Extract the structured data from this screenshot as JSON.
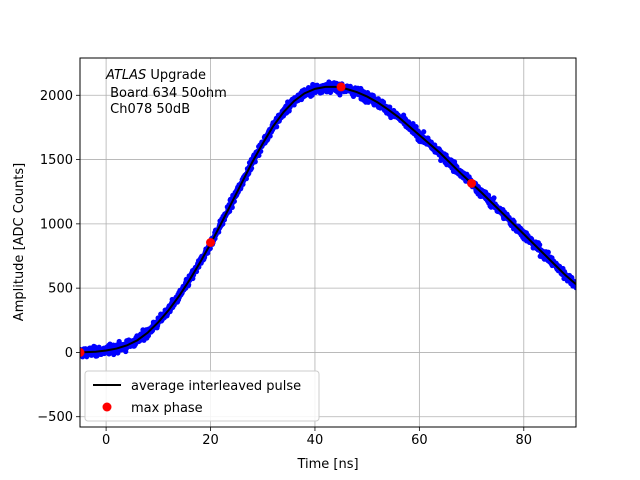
{
  "chart_data": {
    "type": "scatter",
    "xlabel": "Time [ns]",
    "ylabel": "Amplitude [ADC Counts]",
    "xlim": [
      -5,
      90
    ],
    "ylim": [
      -580,
      2290
    ],
    "xticks": [
      0,
      20,
      40,
      60,
      80
    ],
    "yticks": [
      -500,
      0,
      500,
      1000,
      1500,
      2000
    ],
    "grid": true,
    "annotation": {
      "line1_italic": "ATLAS",
      "line1_rest": " Upgrade",
      "line2": " Board 634 50ohm",
      "line3": " Ch078 50dB"
    },
    "legend": {
      "position": "lower-left",
      "entries": [
        {
          "label": "average interleaved pulse",
          "color": "#000000",
          "marker": "line"
        },
        {
          "label": "max phase",
          "color": "#ff0000",
          "marker": "circle"
        }
      ]
    },
    "series": [
      {
        "name": "average interleaved pulse",
        "color": "#000000",
        "x": [
          -5,
          -2,
          0,
          2,
          4,
          6,
          8,
          10,
          12,
          14,
          16,
          18,
          20,
          22,
          24,
          26,
          28,
          30,
          32,
          34,
          36,
          38,
          40,
          42,
          44,
          46,
          48,
          50,
          52,
          54,
          56,
          58,
          60,
          62,
          64,
          66,
          68,
          70,
          72,
          74,
          76,
          78,
          80,
          82,
          84,
          86,
          88,
          90
        ],
        "y": [
          0,
          5,
          15,
          30,
          55,
          95,
          155,
          235,
          330,
          440,
          565,
          700,
          845,
          1000,
          1160,
          1320,
          1480,
          1625,
          1760,
          1870,
          1955,
          2015,
          2050,
          2065,
          2065,
          2050,
          2025,
          1990,
          1945,
          1890,
          1830,
          1760,
          1690,
          1620,
          1550,
          1470,
          1390,
          1315,
          1240,
          1160,
          1080,
          1000,
          920,
          840,
          760,
          680,
          600,
          530
        ]
      },
      {
        "name": "max phase",
        "color": "#ff0000",
        "x": [
          -5,
          20,
          45,
          70
        ],
        "y": [
          0,
          855,
          2065,
          1315
        ]
      }
    ],
    "samples": {
      "color": "#0000ff",
      "count": 1900,
      "noise": 25
    }
  }
}
